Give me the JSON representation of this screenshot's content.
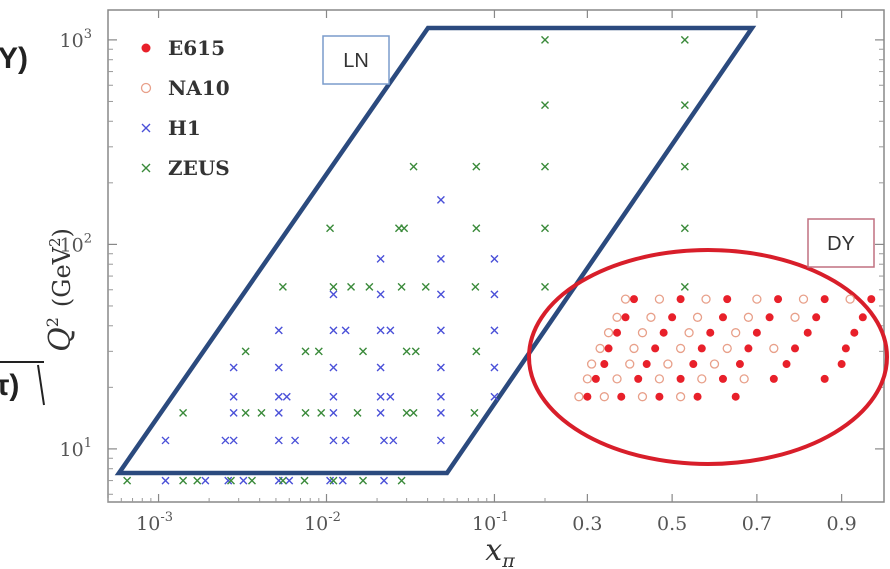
{
  "chart_data": {
    "type": "scatter",
    "title": "",
    "xlabel": "xπ",
    "ylabel": "Q² (GeV²)",
    "x_axis": {
      "segments": [
        {
          "scale": "log",
          "range": [
            0.0005,
            0.2
          ]
        },
        {
          "scale": "linear",
          "range": [
            0.2,
            1.0
          ]
        }
      ],
      "log_ticks": [
        {
          "base": "10",
          "exp": "-3"
        },
        {
          "base": "10",
          "exp": "-2"
        },
        {
          "base": "10",
          "exp": "-1"
        }
      ],
      "linear_ticks": [
        "0.3",
        "0.5",
        "0.7",
        "0.9"
      ]
    },
    "y_axis": {
      "scale": "log",
      "range": [
        5.5,
        1400
      ],
      "ticks": [
        {
          "base": "10",
          "exp": "1"
        },
        {
          "base": "10",
          "exp": "2"
        },
        {
          "base": "10",
          "exp": "3"
        }
      ]
    },
    "legend_position": "top-left",
    "grid": false,
    "series": [
      {
        "name": "E615",
        "marker": "filled-circle",
        "color": "#e8202a",
        "points": [
          [
            0.3,
            18
          ],
          [
            0.38,
            18
          ],
          [
            0.47,
            18
          ],
          [
            0.56,
            18
          ],
          [
            0.65,
            18
          ],
          [
            0.32,
            22
          ],
          [
            0.42,
            22
          ],
          [
            0.52,
            22
          ],
          [
            0.62,
            22
          ],
          [
            0.74,
            22
          ],
          [
            0.86,
            22
          ],
          [
            0.34,
            26
          ],
          [
            0.44,
            26
          ],
          [
            0.55,
            26
          ],
          [
            0.66,
            26
          ],
          [
            0.77,
            26
          ],
          [
            0.9,
            26
          ],
          [
            0.35,
            31
          ],
          [
            0.46,
            31
          ],
          [
            0.57,
            31
          ],
          [
            0.68,
            31
          ],
          [
            0.79,
            31
          ],
          [
            0.91,
            31
          ],
          [
            0.37,
            37
          ],
          [
            0.48,
            37
          ],
          [
            0.59,
            37
          ],
          [
            0.7,
            37
          ],
          [
            0.82,
            37
          ],
          [
            0.93,
            37
          ],
          [
            0.39,
            44
          ],
          [
            0.5,
            44
          ],
          [
            0.62,
            44
          ],
          [
            0.73,
            44
          ],
          [
            0.84,
            44
          ],
          [
            0.95,
            44
          ],
          [
            0.41,
            54
          ],
          [
            0.52,
            54
          ],
          [
            0.63,
            54
          ],
          [
            0.75,
            54
          ],
          [
            0.86,
            54
          ],
          [
            0.97,
            54
          ]
        ]
      },
      {
        "name": "NA10",
        "marker": "open-circle",
        "color": "#e8a08a",
        "points": [
          [
            0.28,
            18
          ],
          [
            0.34,
            18
          ],
          [
            0.43,
            18
          ],
          [
            0.52,
            18
          ],
          [
            0.3,
            22
          ],
          [
            0.37,
            22
          ],
          [
            0.47,
            22
          ],
          [
            0.57,
            22
          ],
          [
            0.67,
            22
          ],
          [
            0.31,
            26
          ],
          [
            0.4,
            26
          ],
          [
            0.49,
            26
          ],
          [
            0.6,
            26
          ],
          [
            0.33,
            31
          ],
          [
            0.41,
            31
          ],
          [
            0.52,
            31
          ],
          [
            0.63,
            31
          ],
          [
            0.74,
            31
          ],
          [
            0.35,
            37
          ],
          [
            0.43,
            37
          ],
          [
            0.54,
            37
          ],
          [
            0.65,
            37
          ],
          [
            0.37,
            44
          ],
          [
            0.45,
            44
          ],
          [
            0.56,
            44
          ],
          [
            0.68,
            44
          ],
          [
            0.79,
            44
          ],
          [
            0.39,
            54
          ],
          [
            0.47,
            54
          ],
          [
            0.58,
            54
          ],
          [
            0.7,
            54
          ],
          [
            0.81,
            54
          ],
          [
            0.92,
            54
          ]
        ]
      },
      {
        "name": "H1",
        "marker": "x",
        "color": "#4a50d8",
        "points": [
          [
            0.0011,
            7
          ],
          [
            0.0019,
            7
          ],
          [
            0.0026,
            7
          ],
          [
            0.0032,
            7
          ],
          [
            0.0052,
            7
          ],
          [
            0.006,
            7
          ],
          [
            0.0105,
            7
          ],
          [
            0.0125,
            7
          ],
          [
            0.022,
            7
          ],
          [
            0.0011,
            11
          ],
          [
            0.0025,
            11
          ],
          [
            0.0028,
            11
          ],
          [
            0.0052,
            11
          ],
          [
            0.0065,
            11
          ],
          [
            0.011,
            11
          ],
          [
            0.013,
            11
          ],
          [
            0.022,
            11
          ],
          [
            0.025,
            11
          ],
          [
            0.048,
            11
          ],
          [
            0.0028,
            15
          ],
          [
            0.0052,
            15
          ],
          [
            0.011,
            15
          ],
          [
            0.021,
            15
          ],
          [
            0.048,
            15
          ],
          [
            0.0028,
            18
          ],
          [
            0.0052,
            18
          ],
          [
            0.0058,
            18
          ],
          [
            0.011,
            18
          ],
          [
            0.021,
            18
          ],
          [
            0.024,
            18
          ],
          [
            0.048,
            18
          ],
          [
            0.1,
            18
          ],
          [
            0.0028,
            25
          ],
          [
            0.0052,
            25
          ],
          [
            0.011,
            25
          ],
          [
            0.021,
            25
          ],
          [
            0.048,
            25
          ],
          [
            0.1,
            25
          ],
          [
            0.0052,
            38
          ],
          [
            0.011,
            38
          ],
          [
            0.013,
            38
          ],
          [
            0.021,
            38
          ],
          [
            0.024,
            38
          ],
          [
            0.048,
            38
          ],
          [
            0.1,
            38
          ],
          [
            0.011,
            57
          ],
          [
            0.021,
            57
          ],
          [
            0.048,
            57
          ],
          [
            0.1,
            57
          ],
          [
            0.021,
            85
          ],
          [
            0.048,
            85
          ],
          [
            0.1,
            85
          ],
          [
            0.048,
            165
          ]
        ]
      },
      {
        "name": "ZEUS",
        "marker": "x",
        "color": "#3a8a3a",
        "points": [
          [
            0.00065,
            7
          ],
          [
            0.0014,
            7
          ],
          [
            0.0017,
            7
          ],
          [
            0.0027,
            7
          ],
          [
            0.0036,
            7
          ],
          [
            0.0055,
            7
          ],
          [
            0.0074,
            7
          ],
          [
            0.011,
            7
          ],
          [
            0.0165,
            7
          ],
          [
            0.028,
            7
          ],
          [
            0.0014,
            15
          ],
          [
            0.0033,
            15
          ],
          [
            0.0041,
            15
          ],
          [
            0.0075,
            15
          ],
          [
            0.0093,
            15
          ],
          [
            0.0153,
            15
          ],
          [
            0.03,
            15
          ],
          [
            0.033,
            15
          ],
          [
            0.076,
            15
          ],
          [
            0.0033,
            30
          ],
          [
            0.0075,
            30
          ],
          [
            0.009,
            30
          ],
          [
            0.0165,
            30
          ],
          [
            0.03,
            30
          ],
          [
            0.034,
            30
          ],
          [
            0.078,
            30
          ],
          [
            0.0055,
            62
          ],
          [
            0.011,
            62
          ],
          [
            0.014,
            62
          ],
          [
            0.018,
            62
          ],
          [
            0.028,
            62
          ],
          [
            0.039,
            62
          ],
          [
            0.077,
            62
          ],
          [
            0.2,
            62
          ],
          [
            0.53,
            62
          ],
          [
            0.0105,
            120
          ],
          [
            0.027,
            120
          ],
          [
            0.029,
            120
          ],
          [
            0.078,
            120
          ],
          [
            0.2,
            120
          ],
          [
            0.53,
            120
          ],
          [
            0.033,
            240
          ],
          [
            0.078,
            240
          ],
          [
            0.2,
            240
          ],
          [
            0.53,
            240
          ],
          [
            0.2,
            480
          ],
          [
            0.53,
            480
          ],
          [
            0.2,
            1000
          ],
          [
            0.53,
            1000
          ]
        ]
      }
    ],
    "regions": [
      {
        "label": "LN",
        "shape": "parallelogram",
        "color": "#2b4a7e"
      },
      {
        "label": "DY",
        "shape": "ellipse",
        "color": "#d81e2a"
      }
    ]
  },
  "ylabel_parts": {
    "symbol": "Q",
    "sup": "2",
    "unit_open": "(GeV",
    "unit_sup": "2",
    "unit_close": ")"
  },
  "xlabel_parts": {
    "symbol": "x",
    "sub": "π"
  },
  "left_fragments": {
    "top": "Y)",
    "bottom": "τ)"
  }
}
